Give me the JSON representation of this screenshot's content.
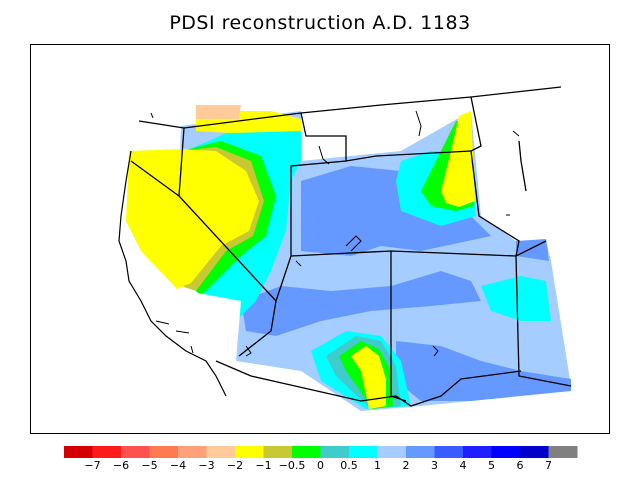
{
  "title": "PDSI reconstruction A.D. 1183",
  "legend": {
    "colors": [
      "#d40000",
      "#ff1a1a",
      "#ff5050",
      "#ff7a50",
      "#ffa078",
      "#ffcc99",
      "#ffff00",
      "#c8c832",
      "#00ff00",
      "#40cccc",
      "#00ffff",
      "#a6cdff",
      "#6699ff",
      "#3a5cff",
      "#1f1fff",
      "#0000ff",
      "#0000cc",
      "#808080"
    ],
    "labels": [
      "−7",
      "−6",
      "−5",
      "−4",
      "−3",
      "−2",
      "−1",
      "−0.5",
      "0",
      "0.5",
      "1",
      "2",
      "3",
      "4",
      "5",
      "6",
      "7"
    ]
  }
}
